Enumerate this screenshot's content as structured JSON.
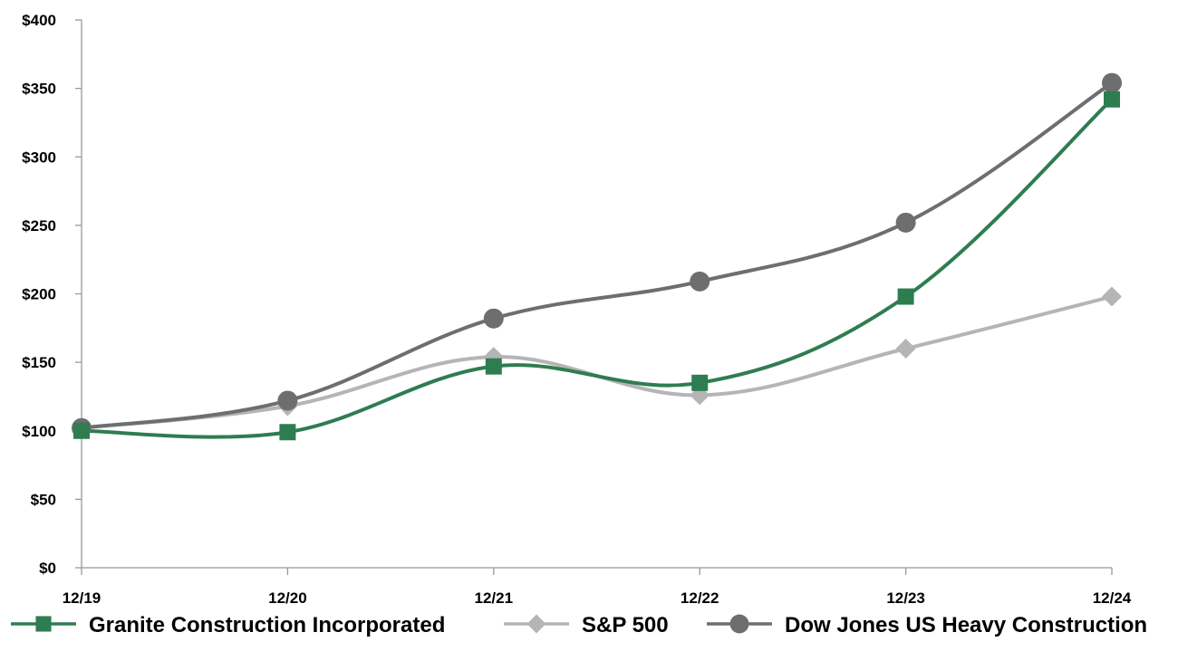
{
  "chart_data": {
    "type": "line",
    "title": "",
    "xlabel": "",
    "ylabel": "",
    "categories": [
      "12/19",
      "12/20",
      "12/21",
      "12/22",
      "12/23",
      "12/24"
    ],
    "ylim": [
      0,
      400
    ],
    "y_ticks": [
      0,
      50,
      100,
      150,
      200,
      250,
      300,
      350,
      400
    ],
    "y_tick_labels": [
      "$0",
      "$50",
      "$100",
      "$150",
      "$200",
      "$250",
      "$300",
      "$350",
      "$400"
    ],
    "grid": false,
    "legend_position": "bottom",
    "series": [
      {
        "name": "Granite Construction Incorporated",
        "values": [
          100,
          99,
          147,
          135,
          198,
          342
        ],
        "color": "#2e7d50",
        "marker": "square"
      },
      {
        "name": "S&P 500",
        "values": [
          102,
          118,
          154,
          126,
          160,
          198
        ],
        "color": "#b5b5b5",
        "marker": "diamond"
      },
      {
        "name": "Dow Jones US Heavy Construction",
        "values": [
          102,
          122,
          182,
          209,
          252,
          354
        ],
        "color": "#6d6e70",
        "marker": "circle"
      }
    ]
  }
}
